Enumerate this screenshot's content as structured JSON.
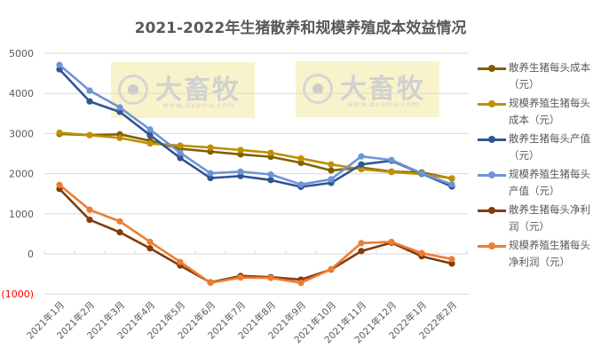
{
  "chart_data": {
    "type": "line",
    "title": "2021-2022年生猪散养和规模养殖成本效益情况",
    "xlabel": "",
    "ylabel": "",
    "ylim": [
      -1000,
      5000
    ],
    "yticks": [
      5000,
      4000,
      3000,
      2000,
      1000,
      0,
      -1000
    ],
    "ytick_labels": [
      "5000",
      "4000",
      "3000",
      "2000",
      "1000",
      "0",
      "(1000)"
    ],
    "grid": true,
    "legend_position": "right",
    "categories": [
      "2021年1月",
      "2021年2月",
      "2021年3月",
      "2021年4月",
      "2021年5月",
      "2021年6月",
      "2021年7月",
      "2021年8月",
      "2021年9月",
      "2021年10月",
      "2021年11月",
      "2021年12月",
      "2022年1月",
      "2022年2月"
    ],
    "series": [
      {
        "name": "散养生猪每头成本（元）",
        "color": "#7f6000",
        "values": [
          2990,
          2960,
          2980,
          2820,
          2620,
          2550,
          2480,
          2420,
          2270,
          2080,
          2150,
          2050,
          2030,
          1880
        ]
      },
      {
        "name": "规模养殖生猪每头成本（元）",
        "color": "#bf9000",
        "values": [
          3020,
          2960,
          2890,
          2750,
          2700,
          2650,
          2590,
          2520,
          2380,
          2230,
          2110,
          2040,
          1990,
          1880
        ]
      },
      {
        "name": "散养生猪每头产值（元）",
        "color": "#2f5597",
        "values": [
          4600,
          3800,
          3540,
          2960,
          2390,
          1890,
          1940,
          1840,
          1670,
          1770,
          2230,
          2320,
          2000,
          1680
        ]
      },
      {
        "name": "规模养殖生猪每头产值（元）",
        "color": "#6f94d6",
        "values": [
          4710,
          4070,
          3650,
          3100,
          2520,
          2010,
          2050,
          1980,
          1730,
          1860,
          2430,
          2340,
          2010,
          1730
        ]
      },
      {
        "name": "散养生猪每头净利润（元）",
        "color": "#843c0c",
        "values": [
          1620,
          850,
          540,
          140,
          -290,
          -710,
          -550,
          -580,
          -640,
          -390,
          70,
          280,
          -60,
          -240
        ]
      },
      {
        "name": "规模养殖生猪每头净利润（元）",
        "color": "#ed7d31",
        "values": [
          1720,
          1100,
          810,
          300,
          -200,
          -720,
          -590,
          -600,
          -720,
          -380,
          270,
          300,
          20,
          -130
        ]
      }
    ]
  },
  "watermarks": [
    {
      "brand": "大畜牧",
      "url": "www.dxumu.com"
    },
    {
      "brand": "大畜牧",
      "url": "www.dxumu.com"
    }
  ],
  "colors": {
    "axis_text": "#595959",
    "negative_tick": "#ff0000",
    "grid": "#d9d9d9"
  }
}
